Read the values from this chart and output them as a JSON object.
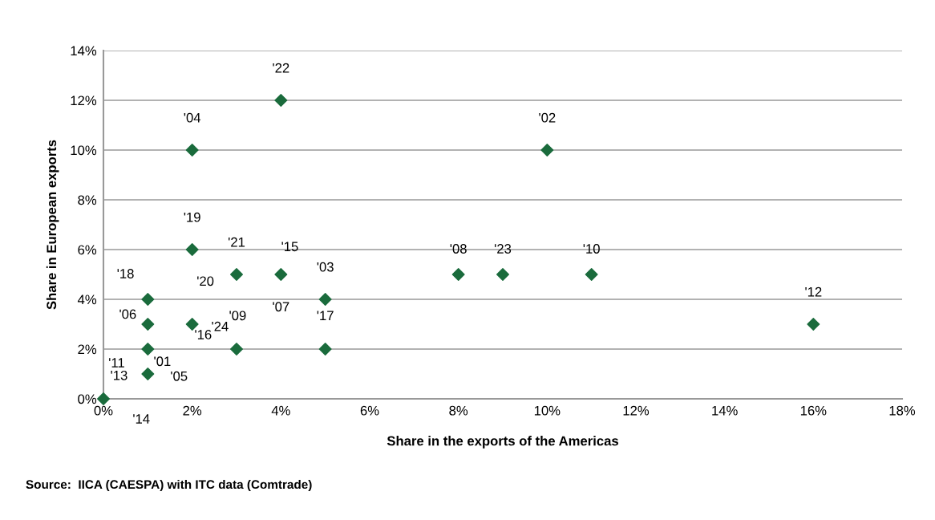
{
  "chart_data": {
    "type": "scatter",
    "xlabel": "Share in the exports of the Americas",
    "ylabel": "Share in European exports",
    "x": [
      4,
      2,
      10,
      2,
      3,
      4,
      8,
      9,
      11,
      5,
      1,
      1,
      2,
      16,
      3,
      5,
      1,
      1,
      0
    ],
    "series": [
      {
        "color": "#1a6b3c",
        "values": [
          12,
          10,
          10,
          6,
          5,
          5,
          5,
          5,
          5,
          4,
          4,
          3,
          3,
          3,
          2,
          2,
          2,
          1,
          0
        ]
      }
    ],
    "marker": "diamond",
    "grid": "y",
    "legend": false,
    "xlim": [
      0,
      18
    ],
    "xticks": [
      {
        "value": 0,
        "label": "0%"
      },
      {
        "value": 2,
        "label": "2%"
      },
      {
        "value": 4,
        "label": "4%"
      },
      {
        "value": 6,
        "label": "6%"
      },
      {
        "value": 8,
        "label": "8%"
      },
      {
        "value": 10,
        "label": "10%"
      },
      {
        "value": 12,
        "label": "12%"
      },
      {
        "value": 14,
        "label": "14%"
      },
      {
        "value": 16,
        "label": "16%"
      },
      {
        "value": 18,
        "label": "18%"
      }
    ],
    "ylim": [
      0,
      14
    ],
    "yticks": [
      {
        "value": 0,
        "label": "0%"
      },
      {
        "value": 2,
        "label": "2%"
      },
      {
        "value": 4,
        "label": "4%"
      },
      {
        "value": 6,
        "label": "6%"
      },
      {
        "value": 8,
        "label": "8%"
      },
      {
        "value": 10,
        "label": "10%"
      },
      {
        "value": 12,
        "label": "12%"
      },
      {
        "value": 14,
        "label": "14%"
      }
    ],
    "annotations": [
      {
        "text": "'22",
        "x": 4,
        "y": 12
      },
      {
        "text": "'04",
        "x": 2,
        "y": 10
      },
      {
        "text": "'02",
        "x": 10,
        "y": 10
      },
      {
        "text": "'19",
        "x": 2,
        "y": 6
      },
      {
        "text": "'21",
        "x": 3,
        "y": 5
      },
      {
        "text": "'20",
        "x": 3,
        "y": 5
      },
      {
        "text": "'15",
        "x": 4,
        "y": 5
      },
      {
        "text": "'08",
        "x": 8,
        "y": 5
      },
      {
        "text": "'23",
        "x": 9,
        "y": 5
      },
      {
        "text": "'10",
        "x": 11,
        "y": 5
      },
      {
        "text": "'03",
        "x": 5,
        "y": 4
      },
      {
        "text": "'07",
        "x": 4,
        "y": 5
      },
      {
        "text": "'18",
        "x": 1,
        "y": 4
      },
      {
        "text": "'06",
        "x": 1,
        "y": 3
      },
      {
        "text": "'24",
        "x": 2,
        "y": 3
      },
      {
        "text": "'12",
        "x": 16,
        "y": 3
      },
      {
        "text": "'09",
        "x": 3,
        "y": 2
      },
      {
        "text": "'16",
        "x": 3,
        "y": 2
      },
      {
        "text": "'17",
        "x": 5,
        "y": 2
      },
      {
        "text": "'01",
        "x": 1,
        "y": 2
      },
      {
        "text": "'05",
        "x": 1,
        "y": 1
      },
      {
        "text": "'11",
        "x": 1,
        "y": 1
      },
      {
        "text": "'13",
        "x": 0,
        "y": 0
      },
      {
        "text": "'14",
        "x": 0,
        "y": 0
      },
      "Source:  IICA (CAESPA) with ITC data (Comtrade)"
    ]
  }
}
